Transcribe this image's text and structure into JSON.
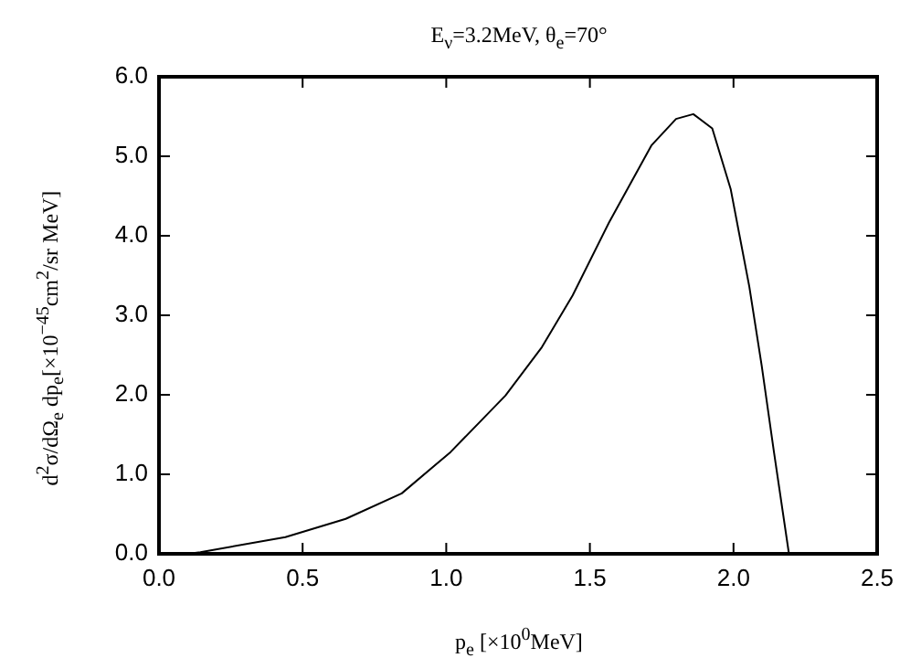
{
  "chart_data": {
    "type": "line",
    "title": "E$_{ν}$=3.2MeV,  θ$_{e}$=70°",
    "xlabel": "p$_{e}$ [×10$^{0}$MeV]",
    "ylabel": "d$^{2}$σ/dΩ$_{e}$ dp$_{e}$[×10$^{−45}$cm$^{2}$/sr MeV]",
    "series": [
      {
        "color": "#000000",
        "x": [
          0.1,
          0.144,
          0.44,
          0.65,
          0.845,
          1.015,
          1.206,
          1.333,
          1.44,
          1.567,
          1.715,
          1.8,
          1.86,
          1.926,
          1.99,
          2.055,
          2.098,
          2.14,
          2.193
        ],
        "values": [
          0,
          0.02,
          0.21,
          0.44,
          0.76,
          1.28,
          1.99,
          2.6,
          3.25,
          4.17,
          5.14,
          5.47,
          5.53,
          5.35,
          4.59,
          3.36,
          2.37,
          1.3,
          0
        ]
      }
    ],
    "xlim": [
      0,
      2.5
    ],
    "xticks": [
      {
        "value": 0,
        "label": "0.0"
      },
      {
        "value": 0.5,
        "label": "0.5"
      },
      {
        "value": 1,
        "label": "1.0"
      },
      {
        "value": 1.5,
        "label": "1.5"
      },
      {
        "value": 2,
        "label": "2.0"
      },
      {
        "value": 2.5,
        "label": "2.5"
      }
    ],
    "ylim": [
      0,
      6
    ],
    "yticks": [
      {
        "value": 0,
        "label": "0.0"
      },
      {
        "value": 1,
        "label": "1.0"
      },
      {
        "value": 2,
        "label": "2.0"
      },
      {
        "value": 3,
        "label": "3.0"
      },
      {
        "value": 4,
        "label": "4.0"
      },
      {
        "value": 5,
        "label": "5.0"
      },
      {
        "value": 6,
        "label": "6.0"
      }
    ],
    "grid": false,
    "legend": false,
    "marker": "none",
    "line_style": "solid"
  }
}
